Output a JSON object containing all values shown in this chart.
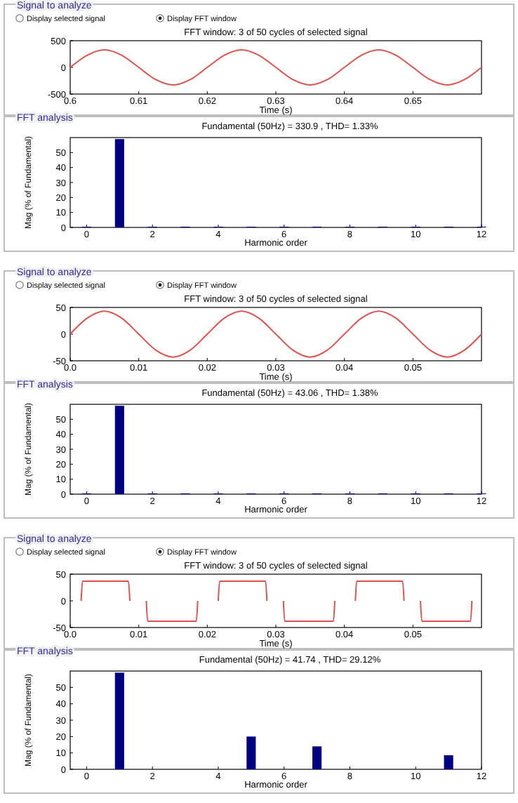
{
  "chart_data": [
    {
      "type": "line",
      "title": "FFT window: 3 of 50 cycles of selected signal",
      "xlabel": "Time (s)",
      "annotations": [
        "Signal to analyze",
        "Display selected signal",
        "Display FFT window"
      ],
      "xlim": [
        0.6,
        0.66
      ],
      "xticks": [
        0.6,
        0.61,
        0.62,
        0.63,
        0.64,
        0.65
      ],
      "ylim": [
        -500,
        500
      ],
      "yticks": [
        -500,
        0,
        500
      ],
      "x": [
        0.6,
        0.6025,
        0.605,
        0.6075,
        0.61,
        0.6125,
        0.615,
        0.6175,
        0.62,
        0.6225,
        0.625,
        0.6275,
        0.63,
        0.6325,
        0.635,
        0.6375,
        0.64,
        0.6425,
        0.645,
        0.6475,
        0.65,
        0.6525,
        0.655,
        0.6575,
        0.66
      ],
      "series": [
        {
          "color": "#d9534f",
          "values": [
            0,
            230,
            330,
            230,
            0,
            -230,
            -330,
            -230,
            0,
            230,
            330,
            230,
            0,
            -230,
            -330,
            -230,
            0,
            230,
            330,
            230,
            0,
            -230,
            -330,
            -230,
            0
          ]
        }
      ]
    },
    {
      "type": "bar",
      "title": "Fundamental (50Hz) = 330.9 , THD= 1.33%",
      "xlabel": "Harmonic order",
      "ylabel": "Mag (% of Fundamental)",
      "annotations": [
        "FFT analysis"
      ],
      "xlim": [
        -0.5,
        12
      ],
      "xticks": [
        0,
        2,
        4,
        6,
        8,
        10,
        12
      ],
      "ylim": [
        0,
        60
      ],
      "yticks": [
        0,
        10,
        20,
        30,
        40,
        50
      ],
      "color": "#000080",
      "x": [
        0,
        1,
        2,
        3,
        4,
        5,
        6,
        7,
        8,
        9,
        10,
        11,
        12
      ],
      "values": [
        0.5,
        59,
        0.5,
        0.5,
        0.5,
        0.5,
        0.5,
        0.5,
        0.5,
        0.5,
        0.5,
        0.5,
        0.5
      ]
    },
    {
      "type": "line",
      "title": "FFT window: 3 of 50 cycles of selected signal",
      "xlabel": "Time (s)",
      "annotations": [
        "Signal to analyze",
        "Display selected signal",
        "Display FFT window"
      ],
      "xlim": [
        0,
        0.06
      ],
      "xticks": [
        {
          "value": 0,
          "label": "0.0"
        },
        0.01,
        0.02,
        0.03,
        0.04,
        0.05
      ],
      "ylim": [
        -50,
        50
      ],
      "yticks": [
        -50,
        0,
        50
      ],
      "x": [
        0,
        0.0025,
        0.005,
        0.0075,
        0.01,
        0.0125,
        0.015,
        0.0175,
        0.02,
        0.0225,
        0.025,
        0.0275,
        0.03,
        0.0325,
        0.035,
        0.0375,
        0.04,
        0.0425,
        0.045,
        0.0475,
        0.05,
        0.0525,
        0.055,
        0.0575,
        0.06
      ],
      "series": [
        {
          "color": "#d9534f",
          "values": [
            0,
            30,
            43,
            30,
            0,
            -30,
            -43,
            -30,
            0,
            30,
            43,
            30,
            0,
            -30,
            -43,
            -30,
            0,
            30,
            43,
            30,
            0,
            -30,
            -43,
            -30,
            0
          ]
        }
      ]
    },
    {
      "type": "bar",
      "title": "Fundamental (50Hz) = 43.06 , THD= 1.38%",
      "xlabel": "Harmonic order",
      "ylabel": "Mag (% of Fundamental)",
      "annotations": [
        "FFT analysis"
      ],
      "xlim": [
        -0.5,
        12
      ],
      "xticks": [
        0,
        2,
        4,
        6,
        8,
        10,
        12
      ],
      "ylim": [
        0,
        60
      ],
      "yticks": [
        0,
        10,
        20,
        30,
        40,
        50
      ],
      "color": "#000080",
      "x": [
        0,
        1,
        2,
        3,
        4,
        5,
        6,
        7,
        8,
        9,
        10,
        11,
        12
      ],
      "values": [
        0.5,
        59,
        0.5,
        0.5,
        0.5,
        0.5,
        0.5,
        0.5,
        0.5,
        0.5,
        0.5,
        0.5,
        0.5
      ]
    },
    {
      "type": "line",
      "title": "FFT window: 3 of 50 cycles of selected signal",
      "xlabel": "Time (s)",
      "annotations": [
        "Signal to analyze",
        "Display selected signal",
        "Display FFT window"
      ],
      "xlim": [
        0,
        0.06
      ],
      "xticks": [
        {
          "value": 0,
          "label": "0.0"
        },
        0.01,
        0.02,
        0.03,
        0.04,
        0.05
      ],
      "ylim": [
        -50,
        50
      ],
      "yticks": [
        -50,
        0,
        50
      ],
      "x": [
        0.0016,
        0.0018,
        0.0085,
        0.0087,
        0.0099,
        0.0111,
        0.0113,
        0.0184,
        0.0186,
        0.0199,
        0.0216,
        0.0218,
        0.0285,
        0.0287,
        0.0299,
        0.0311,
        0.0313,
        0.0384,
        0.0386,
        0.0399,
        0.0416,
        0.0418,
        0.0485,
        0.0487,
        0.0499,
        0.0511,
        0.0513,
        0.0584,
        0.0586
      ],
      "series": [
        {
          "color": "#d9534f",
          "values": [
            0,
            37,
            37,
            0,
            null,
            0,
            -38,
            -38,
            0,
            null,
            0,
            37,
            37,
            0,
            null,
            0,
            -38,
            -38,
            0,
            null,
            0,
            37,
            37,
            0,
            null,
            0,
            -38,
            -38,
            0
          ]
        }
      ]
    },
    {
      "type": "bar",
      "title": "Fundamental (50Hz) = 41.74 , THD= 29.12%",
      "xlabel": "Harmonic order",
      "ylabel": "Mag (% of Fundamental)",
      "annotations": [
        "FFT analysis"
      ],
      "xlim": [
        -0.5,
        12
      ],
      "xticks": [
        0,
        2,
        4,
        6,
        8,
        10,
        12
      ],
      "ylim": [
        0,
        60
      ],
      "yticks": [
        0,
        10,
        20,
        30,
        40,
        50
      ],
      "color": "#000080",
      "x": [
        1,
        5,
        7,
        11
      ],
      "values": [
        59,
        20,
        14,
        8.6
      ]
    }
  ]
}
